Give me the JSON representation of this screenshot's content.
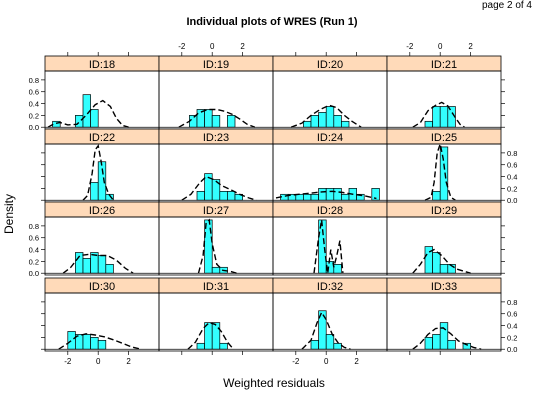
{
  "page_label": "page 2 of 4",
  "chart_data": {
    "type": "histogram",
    "title": "Individual plots of WRES (Run 1)",
    "xlabel": "Weighted residuals",
    "ylabel": "Density",
    "xlim": [
      -3.5,
      4.0
    ],
    "ylim": [
      -0.03,
      0.95
    ],
    "x_ticks": [
      -2,
      0,
      2
    ],
    "y_ticks": [
      0.0,
      0.2,
      0.4,
      0.6,
      0.8
    ],
    "grid": false,
    "colors": {
      "bar_fill": "#33ffff",
      "strip_fill": "#ffdab9",
      "density_line": "#000000",
      "frame": "#000000"
    },
    "panels": [
      {
        "id": "ID:18",
        "bin_start": -3,
        "bin_width": 0.5,
        "values": [
          0.1,
          0.0,
          0.0,
          0.2,
          0.55,
          0.3,
          0.0
        ],
        "density": [
          [
            -3.3,
            0.0
          ],
          [
            -2.9,
            0.06
          ],
          [
            -2.5,
            0.08
          ],
          [
            -2.0,
            0.04
          ],
          [
            -1.4,
            0.05
          ],
          [
            -0.8,
            0.2
          ],
          [
            -0.2,
            0.38
          ],
          [
            0.3,
            0.45
          ],
          [
            0.8,
            0.35
          ],
          [
            1.2,
            0.15
          ],
          [
            1.6,
            0.03
          ],
          [
            2.0,
            0.0
          ]
        ]
      },
      {
        "id": "ID:19",
        "bin_start": -1.5,
        "bin_width": 0.5,
        "values": [
          0.2,
          0.3,
          0.3,
          0.2,
          0.0,
          0.2
        ],
        "density": [
          [
            -2.2,
            0.0
          ],
          [
            -1.5,
            0.1
          ],
          [
            -0.9,
            0.24
          ],
          [
            -0.3,
            0.3
          ],
          [
            0.3,
            0.3
          ],
          [
            0.8,
            0.27
          ],
          [
            1.3,
            0.22
          ],
          [
            1.8,
            0.14
          ],
          [
            2.3,
            0.05
          ],
          [
            2.8,
            0.0
          ]
        ]
      },
      {
        "id": "ID:20",
        "bin_start": -1.5,
        "bin_width": 0.5,
        "values": [
          0.1,
          0.2,
          0.25,
          0.35,
          0.2,
          0.1
        ],
        "density": [
          [
            -2.3,
            0.0
          ],
          [
            -1.6,
            0.07
          ],
          [
            -1.0,
            0.2
          ],
          [
            -0.4,
            0.3
          ],
          [
            0.2,
            0.37
          ],
          [
            0.7,
            0.33
          ],
          [
            1.2,
            0.2
          ],
          [
            1.7,
            0.1
          ],
          [
            2.3,
            0.0
          ]
        ]
      },
      {
        "id": "ID:21",
        "bin_start": -1.0,
        "bin_width": 0.5,
        "values": [
          0.1,
          0.35,
          0.35,
          0.35,
          0.0
        ],
        "density": [
          [
            -1.8,
            0.0
          ],
          [
            -1.3,
            0.08
          ],
          [
            -0.8,
            0.28
          ],
          [
            -0.3,
            0.37
          ],
          [
            0.1,
            0.42
          ],
          [
            0.5,
            0.36
          ],
          [
            0.9,
            0.2
          ],
          [
            1.3,
            0.05
          ],
          [
            1.6,
            0.0
          ]
        ]
      },
      {
        "id": "ID:22",
        "bin_start": -0.5,
        "bin_width": 0.5,
        "values": [
          0.3,
          0.65,
          0.1
        ],
        "density": [
          [
            -1.0,
            0.0
          ],
          [
            -0.7,
            0.08
          ],
          [
            -0.4,
            0.45
          ],
          [
            -0.2,
            0.85
          ],
          [
            0.0,
            0.92
          ],
          [
            0.2,
            0.65
          ],
          [
            0.4,
            0.3
          ],
          [
            0.7,
            0.1
          ],
          [
            1.0,
            0.0
          ]
        ]
      },
      {
        "id": "ID:23",
        "bin_start": -1.0,
        "bin_width": 0.5,
        "values": [
          0.15,
          0.45,
          0.35,
          0.15,
          0.15,
          0.1
        ],
        "density": [
          [
            -2.0,
            0.0
          ],
          [
            -1.4,
            0.1
          ],
          [
            -0.8,
            0.3
          ],
          [
            -0.4,
            0.4
          ],
          [
            0.1,
            0.35
          ],
          [
            0.6,
            0.25
          ],
          [
            1.2,
            0.18
          ],
          [
            1.8,
            0.1
          ],
          [
            2.4,
            0.04
          ],
          [
            2.9,
            0.0
          ]
        ]
      },
      {
        "id": "ID:24",
        "bin_start": -3.0,
        "bin_width": 0.5,
        "values": [
          0.1,
          0.1,
          0.1,
          0.1,
          0.1,
          0.2,
          0.2,
          0.2,
          0.1,
          0.2,
          0.1,
          0.0,
          0.2
        ],
        "density": [
          [
            -3.3,
            0.04
          ],
          [
            -2.5,
            0.08
          ],
          [
            -1.8,
            0.1
          ],
          [
            -1.0,
            0.12
          ],
          [
            -0.3,
            0.14
          ],
          [
            0.4,
            0.15
          ],
          [
            1.1,
            0.13
          ],
          [
            1.8,
            0.1
          ],
          [
            2.6,
            0.07
          ],
          [
            3.3,
            0.03
          ]
        ]
      },
      {
        "id": "ID:25",
        "bin_start": -0.5,
        "bin_width": 0.5,
        "values": [
          0.15,
          0.9,
          0.0
        ],
        "density": [
          [
            -1.0,
            0.0
          ],
          [
            -0.6,
            0.05
          ],
          [
            -0.4,
            0.3
          ],
          [
            -0.2,
            0.8
          ],
          [
            0.0,
            0.95
          ],
          [
            0.2,
            0.7
          ],
          [
            0.4,
            0.3
          ],
          [
            0.7,
            0.05
          ],
          [
            1.0,
            0.0
          ]
        ]
      },
      {
        "id": "ID:26",
        "bin_start": -1.5,
        "bin_width": 0.5,
        "values": [
          0.35,
          0.25,
          0.35,
          0.3,
          0.15
        ],
        "density": [
          [
            -2.3,
            0.0
          ],
          [
            -1.8,
            0.1
          ],
          [
            -1.2,
            0.3
          ],
          [
            -0.6,
            0.32
          ],
          [
            0.0,
            0.3
          ],
          [
            0.6,
            0.3
          ],
          [
            1.2,
            0.22
          ],
          [
            1.8,
            0.08
          ],
          [
            2.3,
            0.0
          ]
        ]
      },
      {
        "id": "ID:27",
        "bin_start": -0.5,
        "bin_width": 0.5,
        "values": [
          0.9,
          0.1,
          0.1
        ],
        "density": [
          [
            -0.9,
            0.0
          ],
          [
            -0.6,
            0.3
          ],
          [
            -0.4,
            0.85
          ],
          [
            -0.2,
            0.9
          ],
          [
            0.0,
            0.5
          ],
          [
            0.3,
            0.15
          ],
          [
            0.7,
            0.05
          ],
          [
            1.2,
            0.03
          ],
          [
            1.6,
            0.0
          ]
        ]
      },
      {
        "id": "ID:28",
        "bin_start": -0.5,
        "bin_width": 0.5,
        "values": [
          0.9,
          0.2,
          0.15
        ],
        "density": [
          [
            -0.8,
            0.0
          ],
          [
            -0.5,
            0.6
          ],
          [
            -0.3,
            0.9
          ],
          [
            -0.1,
            0.4
          ],
          [
            0.1,
            0.0
          ],
          [
            0.3,
            0.4
          ],
          [
            0.5,
            0.1
          ],
          [
            0.7,
            0.3
          ],
          [
            0.9,
            0.55
          ],
          [
            1.1,
            0.0
          ]
        ]
      },
      {
        "id": "ID:29",
        "bin_start": -1.0,
        "bin_width": 0.5,
        "values": [
          0.45,
          0.35,
          0.15,
          0.15
        ],
        "density": [
          [
            -1.8,
            0.0
          ],
          [
            -1.3,
            0.15
          ],
          [
            -0.8,
            0.35
          ],
          [
            -0.4,
            0.4
          ],
          [
            0.1,
            0.3
          ],
          [
            0.6,
            0.15
          ],
          [
            1.1,
            0.07
          ],
          [
            1.6,
            0.03
          ],
          [
            2.0,
            0.0
          ]
        ]
      },
      {
        "id": "ID:30",
        "bin_start": -2.0,
        "bin_width": 0.5,
        "values": [
          0.3,
          0.25,
          0.25,
          0.2,
          0.15
        ],
        "density": [
          [
            -2.6,
            0.0
          ],
          [
            -2.0,
            0.1
          ],
          [
            -1.4,
            0.22
          ],
          [
            -0.8,
            0.26
          ],
          [
            -0.2,
            0.24
          ],
          [
            0.4,
            0.21
          ],
          [
            1.0,
            0.16
          ],
          [
            1.6,
            0.1
          ],
          [
            2.2,
            0.04
          ],
          [
            2.8,
            0.0
          ]
        ]
      },
      {
        "id": "ID:31",
        "bin_start": -1.0,
        "bin_width": 0.5,
        "values": [
          0.1,
          0.45,
          0.45,
          0.1
        ],
        "density": [
          [
            -1.6,
            0.0
          ],
          [
            -1.1,
            0.12
          ],
          [
            -0.6,
            0.35
          ],
          [
            -0.2,
            0.45
          ],
          [
            0.2,
            0.42
          ],
          [
            0.6,
            0.3
          ],
          [
            1.0,
            0.12
          ],
          [
            1.4,
            0.0
          ]
        ]
      },
      {
        "id": "ID:32",
        "bin_start": -1.0,
        "bin_width": 0.5,
        "values": [
          0.15,
          0.65,
          0.25,
          0.1
        ],
        "density": [
          [
            -1.6,
            0.0
          ],
          [
            -1.0,
            0.15
          ],
          [
            -0.6,
            0.45
          ],
          [
            -0.3,
            0.62
          ],
          [
            0.0,
            0.5
          ],
          [
            0.4,
            0.25
          ],
          [
            0.8,
            0.1
          ],
          [
            1.2,
            0.03
          ],
          [
            1.6,
            0.0
          ]
        ]
      },
      {
        "id": "ID:33",
        "bin_start": -1.0,
        "bin_width": 0.5,
        "values": [
          0.2,
          0.25,
          0.45,
          0.15,
          0.0,
          0.1
        ],
        "density": [
          [
            -1.8,
            0.0
          ],
          [
            -1.3,
            0.1
          ],
          [
            -0.8,
            0.25
          ],
          [
            -0.3,
            0.35
          ],
          [
            0.2,
            0.36
          ],
          [
            0.7,
            0.26
          ],
          [
            1.2,
            0.14
          ],
          [
            1.7,
            0.08
          ],
          [
            2.2,
            0.03
          ],
          [
            2.7,
            0.0
          ]
        ]
      }
    ]
  }
}
